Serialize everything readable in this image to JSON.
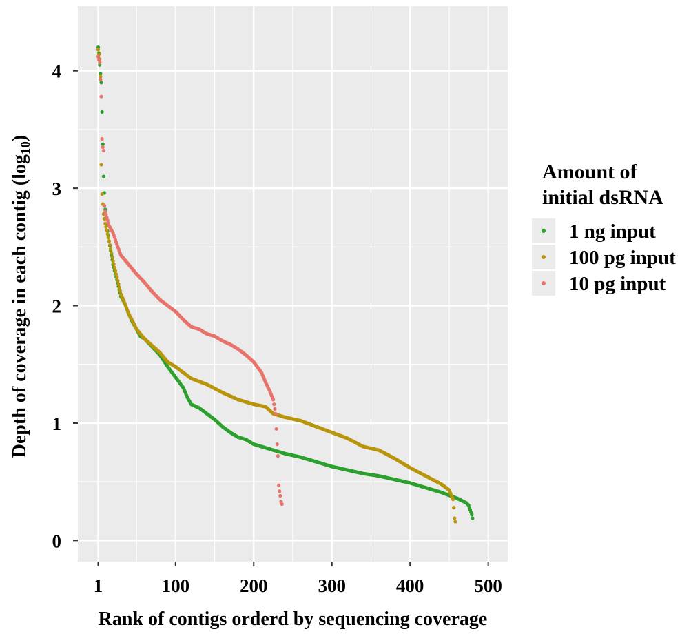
{
  "chart_data": {
    "type": "scatter",
    "title": "",
    "xlabel": "Rank of contigs orderd by sequencing coverage",
    "ylabel": {
      "main": "Depth of coverage in each contig (log",
      "sub": "10",
      "close": ")"
    },
    "xlim": [
      -25,
      525
    ],
    "ylim": [
      -0.18,
      4.55
    ],
    "x_ticks": [
      {
        "value": 1,
        "label": "1"
      },
      {
        "value": 100,
        "label": "100"
      },
      {
        "value": 200,
        "label": "200"
      },
      {
        "value": 300,
        "label": "300"
      },
      {
        "value": 400,
        "label": "400"
      },
      {
        "value": 500,
        "label": "500"
      }
    ],
    "x_minor_ticks": [
      50,
      150,
      250,
      350,
      450
    ],
    "y_ticks": [
      {
        "value": 0,
        "label": "0"
      },
      {
        "value": 1,
        "label": "1"
      },
      {
        "value": 2,
        "label": "2"
      },
      {
        "value": 3,
        "label": "3"
      },
      {
        "value": 4,
        "label": "4"
      }
    ],
    "y_minor_ticks": [
      0.5,
      1.5,
      2.5,
      3.5
    ],
    "grid": true,
    "panel_background": "#ebebeb",
    "grid_color": "#ffffff",
    "legend": {
      "title_line1": "Amount of",
      "title_line2": "initial dsRNA",
      "position": "right"
    },
    "series": [
      {
        "name": "1 ng input",
        "color": "#2ca02c",
        "n": 480,
        "anchors": [
          [
            1,
            4.2
          ],
          [
            2,
            4.15
          ],
          [
            3,
            4.05
          ],
          [
            5,
            3.9
          ],
          [
            6,
            3.65
          ],
          [
            8,
            3.1
          ],
          [
            10,
            2.82
          ],
          [
            12,
            2.68
          ],
          [
            15,
            2.55
          ],
          [
            20,
            2.35
          ],
          [
            25,
            2.22
          ],
          [
            30,
            2.08
          ],
          [
            35,
            2.02
          ],
          [
            40,
            1.93
          ],
          [
            45,
            1.86
          ],
          [
            50,
            1.8
          ],
          [
            55,
            1.74
          ],
          [
            60,
            1.72
          ],
          [
            70,
            1.65
          ],
          [
            80,
            1.58
          ],
          [
            85,
            1.53
          ],
          [
            90,
            1.48
          ],
          [
            100,
            1.39
          ],
          [
            110,
            1.3
          ],
          [
            115,
            1.22
          ],
          [
            120,
            1.16
          ],
          [
            130,
            1.13
          ],
          [
            140,
            1.08
          ],
          [
            150,
            1.03
          ],
          [
            160,
            0.97
          ],
          [
            170,
            0.92
          ],
          [
            180,
            0.88
          ],
          [
            190,
            0.86
          ],
          [
            200,
            0.82
          ],
          [
            220,
            0.78
          ],
          [
            240,
            0.74
          ],
          [
            260,
            0.71
          ],
          [
            280,
            0.67
          ],
          [
            300,
            0.63
          ],
          [
            320,
            0.6
          ],
          [
            340,
            0.57
          ],
          [
            360,
            0.55
          ],
          [
            380,
            0.52
          ],
          [
            400,
            0.49
          ],
          [
            420,
            0.45
          ],
          [
            440,
            0.41
          ],
          [
            460,
            0.36
          ],
          [
            472,
            0.32
          ],
          [
            475,
            0.3
          ],
          [
            477,
            0.26
          ],
          [
            479,
            0.22
          ],
          [
            480,
            0.19
          ]
        ]
      },
      {
        "name": "100 pg input",
        "color": "#b8950a",
        "n": 458,
        "anchors": [
          [
            1,
            4.18
          ],
          [
            3,
            4.1
          ],
          [
            4,
            3.95
          ],
          [
            5,
            3.2
          ],
          [
            6,
            2.95
          ],
          [
            8,
            2.78
          ],
          [
            10,
            2.7
          ],
          [
            15,
            2.55
          ],
          [
            20,
            2.38
          ],
          [
            25,
            2.24
          ],
          [
            30,
            2.1
          ],
          [
            35,
            2.02
          ],
          [
            40,
            1.93
          ],
          [
            45,
            1.87
          ],
          [
            50,
            1.8
          ],
          [
            60,
            1.72
          ],
          [
            70,
            1.66
          ],
          [
            80,
            1.6
          ],
          [
            90,
            1.52
          ],
          [
            100,
            1.48
          ],
          [
            110,
            1.43
          ],
          [
            120,
            1.38
          ],
          [
            140,
            1.33
          ],
          [
            160,
            1.26
          ],
          [
            180,
            1.2
          ],
          [
            200,
            1.16
          ],
          [
            215,
            1.14
          ],
          [
            225,
            1.08
          ],
          [
            240,
            1.05
          ],
          [
            260,
            1.02
          ],
          [
            280,
            0.97
          ],
          [
            300,
            0.92
          ],
          [
            320,
            0.87
          ],
          [
            340,
            0.8
          ],
          [
            360,
            0.77
          ],
          [
            380,
            0.7
          ],
          [
            400,
            0.62
          ],
          [
            420,
            0.55
          ],
          [
            440,
            0.48
          ],
          [
            450,
            0.43
          ],
          [
            455,
            0.35
          ],
          [
            456,
            0.28
          ],
          [
            457,
            0.19
          ],
          [
            458,
            0.16
          ]
        ]
      },
      {
        "name": "10 pg input",
        "color": "#e8736b",
        "n": 236,
        "anchors": [
          [
            1,
            4.12
          ],
          [
            3,
            4.07
          ],
          [
            5,
            3.78
          ],
          [
            6,
            3.42
          ],
          [
            7,
            3.35
          ],
          [
            8,
            3.32
          ],
          [
            9,
            2.85
          ],
          [
            10,
            2.8
          ],
          [
            15,
            2.68
          ],
          [
            20,
            2.62
          ],
          [
            25,
            2.52
          ],
          [
            30,
            2.43
          ],
          [
            40,
            2.35
          ],
          [
            50,
            2.27
          ],
          [
            60,
            2.2
          ],
          [
            70,
            2.12
          ],
          [
            80,
            2.05
          ],
          [
            90,
            2.0
          ],
          [
            100,
            1.95
          ],
          [
            110,
            1.88
          ],
          [
            120,
            1.82
          ],
          [
            130,
            1.8
          ],
          [
            140,
            1.76
          ],
          [
            150,
            1.74
          ],
          [
            160,
            1.7
          ],
          [
            170,
            1.67
          ],
          [
            180,
            1.63
          ],
          [
            190,
            1.58
          ],
          [
            200,
            1.52
          ],
          [
            210,
            1.43
          ],
          [
            215,
            1.35
          ],
          [
            220,
            1.28
          ],
          [
            225,
            1.2
          ],
          [
            228,
            1.08
          ],
          [
            230,
            0.82
          ],
          [
            231,
            0.72
          ],
          [
            232,
            0.47
          ],
          [
            233,
            0.42
          ],
          [
            234,
            0.38
          ],
          [
            235,
            0.33
          ],
          [
            236,
            0.31
          ]
        ]
      }
    ]
  }
}
